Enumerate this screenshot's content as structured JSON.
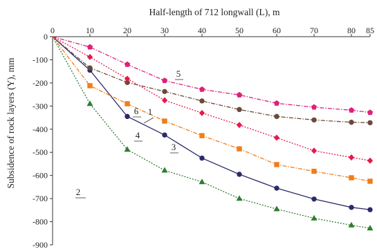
{
  "chart_data": {
    "type": "line",
    "title": "",
    "xlabel": "Half-length of 712 longwall (L), m",
    "ylabel": "Subsidence of rock layers (Y), mm",
    "xlim": [
      0,
      85
    ],
    "ylim": [
      -900,
      0
    ],
    "x_ticks": [
      0,
      10,
      20,
      30,
      40,
      50,
      60,
      70,
      80,
      85
    ],
    "y_ticks": [
      0,
      -100,
      -200,
      -300,
      -400,
      -500,
      -600,
      -700,
      -800,
      -900
    ],
    "x_axis_position": "top",
    "grid": false,
    "legend": "none",
    "series": [
      {
        "name": "1",
        "color": "#2b2b6b",
        "dash": "solid",
        "marker": "circle",
        "x": [
          0,
          10,
          20,
          30,
          40,
          50,
          60,
          70,
          80,
          85
        ],
        "y": [
          0,
          -145,
          -345,
          -425,
          -525,
          -595,
          -655,
          -702,
          -738,
          -748
        ]
      },
      {
        "name": "2",
        "color": "#2e7d32",
        "dash": "dot",
        "marker": "triangle",
        "x": [
          0,
          10,
          20,
          30,
          40,
          50,
          60,
          70,
          80,
          85
        ],
        "y": [
          0,
          -290,
          -488,
          -578,
          -628,
          -700,
          -745,
          -785,
          -815,
          -828
        ]
      },
      {
        "name": "3",
        "color": "#6b4a3a",
        "dash": "dashdot",
        "marker": "circle",
        "x": [
          0,
          10,
          20,
          30,
          40,
          50,
          60,
          70,
          80,
          85
        ],
        "y": [
          0,
          -135,
          -198,
          -237,
          -278,
          -315,
          -345,
          -360,
          -370,
          -372
        ]
      },
      {
        "name": "4",
        "color": "#f07d1a",
        "dash": "dashdot",
        "marker": "square",
        "x": [
          0,
          10,
          20,
          30,
          40,
          50,
          60,
          70,
          80,
          85
        ],
        "y": [
          0,
          -212,
          -290,
          -365,
          -428,
          -485,
          -553,
          -582,
          -610,
          -625
        ]
      },
      {
        "name": "5",
        "color": "#e0207a",
        "dash": "dashdot",
        "marker": "pentagon",
        "x": [
          0,
          10,
          20,
          30,
          40,
          50,
          60,
          70,
          80,
          85
        ],
        "y": [
          0,
          -45,
          -120,
          -190,
          -228,
          -252,
          -288,
          -305,
          -318,
          -328
        ]
      },
      {
        "name": "6",
        "color": "#e6194b",
        "dash": "dot",
        "marker": "diamond",
        "x": [
          0,
          10,
          20,
          30,
          40,
          50,
          60,
          70,
          80,
          85
        ],
        "y": [
          0,
          -88,
          -182,
          -275,
          -330,
          -382,
          -437,
          -493,
          -522,
          -536
        ]
      }
    ]
  }
}
